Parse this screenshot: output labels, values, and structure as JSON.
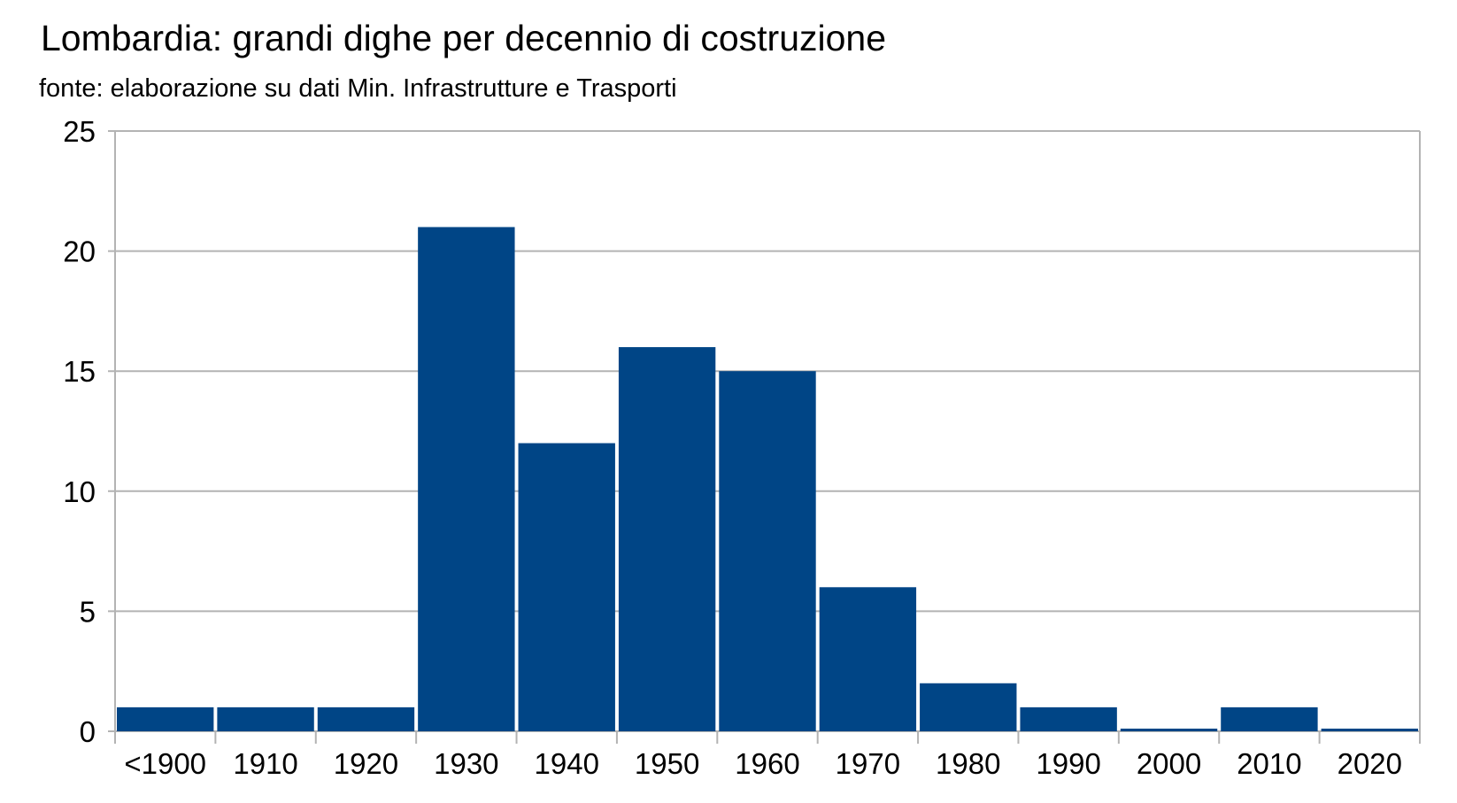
{
  "chart_data": {
    "type": "bar",
    "title": "Lombardia: grandi dighe per decennio di costruzione",
    "subtitle": "fonte: elaborazione su dati Min. Infrastrutture e Trasporti",
    "categories": [
      "<1900",
      "1910",
      "1920",
      "1930",
      "1940",
      "1950",
      "1960",
      "1970",
      "1980",
      "1990",
      "2000",
      "2010",
      "2020"
    ],
    "values": [
      1,
      1,
      1,
      21,
      12,
      16,
      15,
      6,
      2,
      1,
      0,
      1,
      0
    ],
    "xlabel": "",
    "ylabel": "",
    "ylim": [
      0,
      25
    ],
    "yticks": [
      0,
      5,
      10,
      15,
      20,
      25
    ],
    "grid": true,
    "legend": "none",
    "bar_color": "#004586"
  }
}
